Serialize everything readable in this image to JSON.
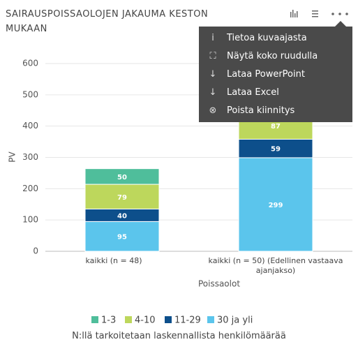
{
  "chart_data": {
    "type": "stacked-bar",
    "title": "SAIRAUSPOISSAOLOJEN JAKAUMA KESTON MUKAAN",
    "y_label": "PV",
    "x_label": "Poissaolot",
    "categories": [
      "kaikki (n = 48)",
      "kaikki (n = 50) (Edellinen vastaava ajanjakso)"
    ],
    "series": [
      {
        "name": "1-3",
        "color": "#4fbe9b",
        "values": [
          50,
          null
        ]
      },
      {
        "name": "4-10",
        "color": "#bdd75c",
        "values": [
          79,
          87
        ]
      },
      {
        "name": "11-29",
        "color": "#0d4f8b",
        "values": [
          40,
          59
        ]
      },
      {
        "name": "30 ja yli",
        "color": "#5bc5ec",
        "values": [
          95,
          299
        ]
      }
    ],
    "ylim": [
      0,
      600
    ],
    "yticks": [
      0,
      100,
      200,
      300,
      400,
      500,
      600
    ],
    "grid": true,
    "legend": "bottom",
    "footnote": "N:llä tarkoitetaan laskennallista henkilömäärää"
  },
  "menu": {
    "items": [
      "Tietoa kuvaajasta",
      "Näytä koko ruudulla",
      "Lataa PowerPoint",
      "Lataa Excel",
      "Poista kiinnitys"
    ]
  }
}
